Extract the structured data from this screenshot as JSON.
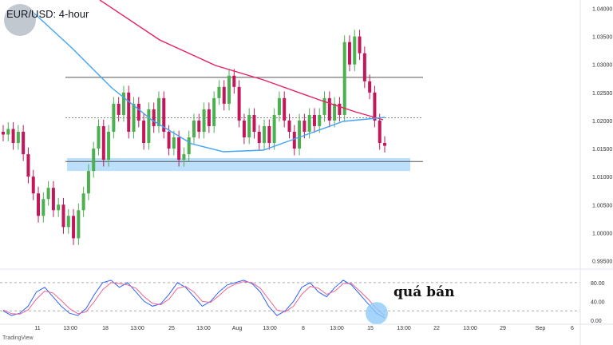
{
  "header": {
    "title": "EUR/USD: 4-hour"
  },
  "brand": {
    "logo_icon": "book-seal-icon",
    "watermark": "TradingView"
  },
  "annotation": {
    "text": "quá bán"
  },
  "colors": {
    "up": "#26a69a",
    "down": "#ef5350",
    "candle_up": "#4caf50",
    "candle_down": "#c2185b",
    "ma_fast": "#42a5f5",
    "ma_slow": "#e91e63",
    "support_zone": "#90caf9",
    "stoch_k": "#2962ff",
    "stoch_d": "#f06292"
  },
  "chart_data": [
    {
      "type": "candlestick",
      "title": "EUR/USD: 4-hour",
      "ylim": [
        0.9935,
        1.0415
      ],
      "y_ticks": [
        "1.04000",
        "1.03500",
        "1.03000",
        "1.02500",
        "1.02000",
        "1.01500",
        "1.01000",
        "1.00500",
        "1.00000",
        "0.99500"
      ],
      "y_tick_values": [
        1.04,
        1.035,
        1.03,
        1.025,
        1.02,
        1.015,
        1.01,
        1.005,
        1.0,
        0.995
      ],
      "x_ticks": [
        "11",
        "13:00",
        "18",
        "13:00",
        "25",
        "13:00",
        "Aug",
        "13:00",
        "8",
        "13:00",
        "15",
        "13:00",
        "22",
        "13:00",
        "29",
        "Sep",
        "6"
      ],
      "x_tick_positions": [
        0,
        1,
        2,
        3,
        4,
        5,
        6,
        7,
        8,
        9,
        10,
        11,
        12,
        13,
        14,
        15,
        16
      ],
      "closes": [
        1.0175,
        1.0185,
        1.016,
        1.018,
        1.014,
        1.01,
        1.007,
        1.003,
        1.006,
        1.008,
        1.004,
        1.005,
        1.001,
        1.003,
        0.999,
        1.004,
        1.007,
        1.011,
        1.015,
        1.019,
        1.013,
        1.018,
        1.023,
        1.021,
        1.025,
        1.018,
        1.023,
        1.02,
        1.016,
        1.022,
        1.019,
        1.024,
        1.018,
        1.015,
        1.017,
        1.013,
        1.014,
        1.017,
        1.02,
        1.018,
        1.022,
        1.019,
        1.024,
        1.026,
        1.023,
        1.028,
        1.026,
        1.02,
        1.017,
        1.021,
        1.018,
        1.016,
        1.019,
        1.016,
        1.021,
        1.024,
        1.02,
        1.018,
        1.015,
        1.02,
        1.018,
        1.021,
        1.019,
        1.021,
        1.024,
        1.02,
        1.023,
        1.021,
        1.034,
        1.03,
        1.035,
        1.032,
        1.027,
        1.025,
        1.02,
        1.016,
        1.0155
      ],
      "ma_fast": {
        "name": "",
        "start": 1.044,
        "end": 1.0215
      },
      "ma_slow": {
        "name": "",
        "start": 1.047,
        "end": 1.021
      },
      "resistance": 1.0277,
      "pivot_dotted": 1.0205,
      "support_line": 1.0127,
      "support_zone": [
        1.011,
        1.0133
      ]
    },
    {
      "type": "line",
      "title": "",
      "ylim": [
        -5,
        95
      ],
      "y_ticks": [
        "80.00",
        "40.00",
        "0.00"
      ],
      "y_tick_values": [
        80,
        40,
        0
      ],
      "levels": [
        80,
        20
      ],
      "series": [
        {
          "values": [
            20,
            10,
            15,
            30,
            60,
            70,
            50,
            30,
            15,
            10,
            25,
            55,
            80,
            85,
            70,
            80,
            60,
            40,
            30,
            35,
            55,
            80,
            70,
            50,
            30,
            40,
            60,
            75,
            80,
            85,
            78,
            60,
            30,
            10,
            20,
            40,
            70,
            80,
            60,
            50,
            70,
            85,
            75,
            55,
            35,
            15,
            5
          ]
        },
        {
          "values": [
            22,
            14,
            13,
            22,
            45,
            62,
            58,
            42,
            25,
            14,
            18,
            40,
            65,
            80,
            78,
            75,
            68,
            50,
            36,
            33,
            45,
            68,
            72,
            60,
            40,
            38,
            52,
            68,
            77,
            82,
            80,
            68,
            45,
            22,
            18,
            30,
            55,
            72,
            68,
            55,
            62,
            78,
            78,
            62,
            45,
            25,
            10
          ]
        }
      ],
      "oversold_marker": true
    }
  ]
}
